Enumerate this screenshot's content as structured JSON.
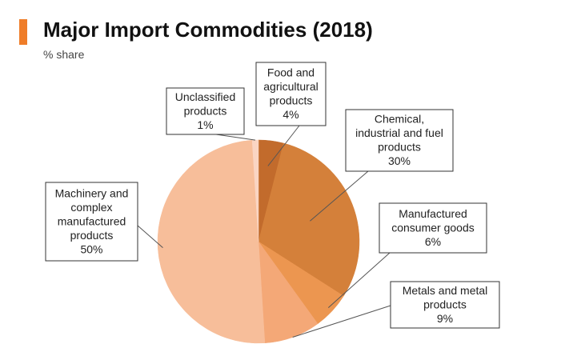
{
  "title": "Major Import Commodities (2018)",
  "subtitle": "% share",
  "colors": {
    "accent": "#ef7d29"
  },
  "chart_data": {
    "type": "pie",
    "title": "Major Import Commodities (2018)",
    "subtitle": "% share",
    "slices": [
      {
        "name": "Food and agricultural products",
        "label_lines": [
          "Food and",
          "agricultural",
          "products"
        ],
        "value": 4,
        "value_label": "4%",
        "color": "#c26b2c"
      },
      {
        "name": "Chemical, industrial and fuel products",
        "label_lines": [
          "Chemical,",
          "industrial and fuel",
          "products"
        ],
        "value": 30,
        "value_label": "30%",
        "color": "#d4803a"
      },
      {
        "name": "Manufactured consumer goods",
        "label_lines": [
          "Manufactured",
          "consumer goods"
        ],
        "value": 6,
        "value_label": "6%",
        "color": "#ec9650"
      },
      {
        "name": "Metals and metal products",
        "label_lines": [
          "Metals and metal",
          "products"
        ],
        "value": 9,
        "value_label": "9%",
        "color": "#f4a877"
      },
      {
        "name": "Machinery and complex manufactured products",
        "label_lines": [
          "Machinery and",
          "complex",
          "manufactured",
          "products"
        ],
        "value": 50,
        "value_label": "50%",
        "color": "#f7be9a"
      },
      {
        "name": "Unclassified products",
        "label_lines": [
          "Unclassified",
          "products"
        ],
        "value": 1,
        "value_label": "1%",
        "color": "#fad5c3"
      }
    ]
  }
}
